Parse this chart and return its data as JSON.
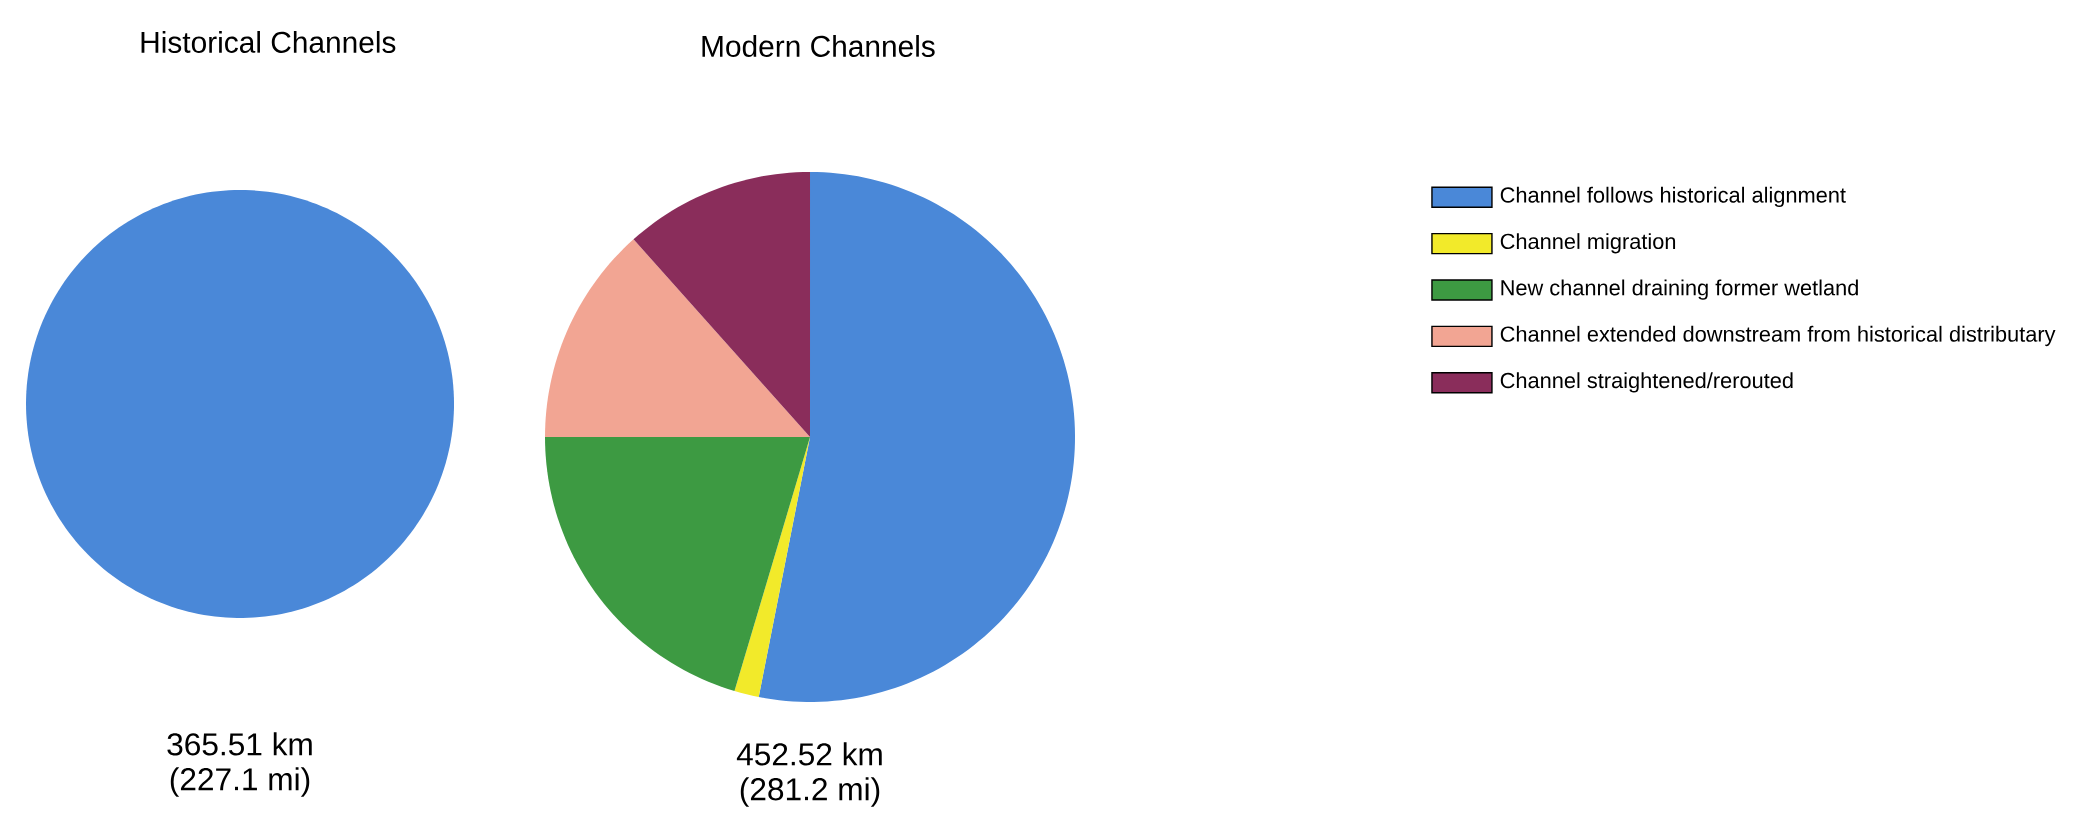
{
  "chart_data": [
    {
      "type": "pie",
      "title": "Historical Channels",
      "categories": [
        null
      ],
      "values": [
        100
      ],
      "colors": [
        "#4a88d8"
      ],
      "annotations": [
        "365.51 km",
        "(227.1 mi)"
      ]
    },
    {
      "type": "pie",
      "title": "Modern Channels",
      "categories": [
        "Channel follows historical alignment",
        "Channel migration",
        "New channel draining former wetland",
        "Channel extended downstream from historical distributary",
        "Channel straightened/rerouted"
      ],
      "values": [
        53.1,
        1.5,
        20.4,
        13.4,
        11.6
      ],
      "colors": [
        "#4a88d8",
        "#f2ea2a",
        "#3d9a42",
        "#f2a593",
        "#8a2d5b"
      ],
      "legend": "right",
      "annotations": [
        "452.52 km",
        "(281.2 mi)"
      ]
    }
  ]
}
